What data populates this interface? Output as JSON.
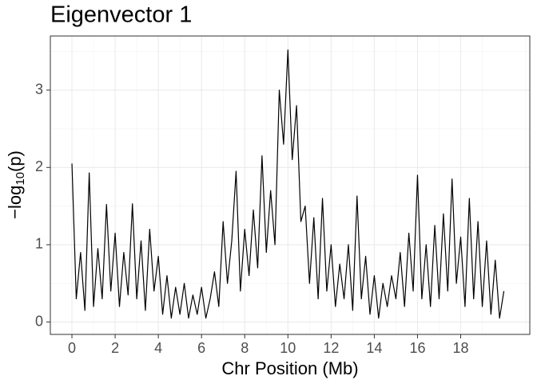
{
  "chart_data": {
    "type": "line",
    "title": "Eigenvector 1",
    "xlabel": "Chr Position (Mb)",
    "ylabel": [
      "−log",
      "10",
      "(p)"
    ],
    "xlim": [
      -1.0,
      21.2
    ],
    "ylim": [
      -0.16,
      3.7
    ],
    "xticks": [
      0,
      2,
      4,
      6,
      8,
      10,
      12,
      14,
      16,
      18
    ],
    "yticks": [
      0,
      1,
      2,
      3
    ],
    "x_minor_grid": [
      1,
      3,
      5,
      7,
      9,
      11,
      13,
      15,
      17,
      19,
      21
    ],
    "y_minor_grid": [
      0.5,
      1.5,
      2.5,
      3.5
    ],
    "grid": true,
    "x": [
      0.0,
      0.2,
      0.4,
      0.6,
      0.8,
      1.0,
      1.2,
      1.4,
      1.6,
      1.8,
      2.0,
      2.2,
      2.4,
      2.6,
      2.8,
      3.0,
      3.2,
      3.4,
      3.6,
      3.8,
      4.0,
      4.2,
      4.4,
      4.6,
      4.8,
      5.0,
      5.2,
      5.4,
      5.6,
      5.8,
      6.0,
      6.2,
      6.4,
      6.6,
      6.8,
      7.0,
      7.2,
      7.4,
      7.6,
      7.8,
      8.0,
      8.2,
      8.4,
      8.6,
      8.8,
      9.0,
      9.2,
      9.4,
      9.6,
      9.8,
      10.0,
      10.2,
      10.4,
      10.6,
      10.8,
      11.0,
      11.2,
      11.4,
      11.6,
      11.8,
      12.0,
      12.2,
      12.4,
      12.6,
      12.8,
      13.0,
      13.2,
      13.4,
      13.6,
      13.8,
      14.0,
      14.2,
      14.4,
      14.6,
      14.8,
      15.0,
      15.2,
      15.4,
      15.6,
      15.8,
      16.0,
      16.2,
      16.4,
      16.6,
      16.8,
      17.0,
      17.2,
      17.4,
      17.6,
      17.8,
      18.0,
      18.2,
      18.4,
      18.6,
      18.8,
      19.0,
      19.2,
      19.4,
      19.6,
      19.8,
      20.0
    ],
    "series": [
      {
        "color": "#000000",
        "values": [
          2.05,
          0.3,
          0.9,
          0.15,
          1.93,
          0.2,
          0.95,
          0.3,
          1.52,
          0.4,
          1.15,
          0.2,
          0.9,
          0.35,
          1.53,
          0.3,
          1.05,
          0.15,
          1.2,
          0.4,
          0.85,
          0.1,
          0.6,
          0.05,
          0.45,
          0.1,
          0.5,
          0.05,
          0.35,
          0.1,
          0.45,
          0.05,
          0.3,
          0.65,
          0.2,
          1.3,
          0.5,
          1.05,
          1.95,
          0.4,
          1.2,
          0.6,
          1.45,
          0.7,
          2.15,
          0.9,
          1.7,
          1.0,
          3.0,
          2.3,
          3.52,
          2.1,
          2.8,
          1.3,
          1.5,
          0.5,
          1.35,
          0.3,
          1.6,
          0.4,
          1.0,
          0.2,
          0.75,
          0.3,
          1.0,
          0.15,
          1.63,
          0.3,
          0.85,
          0.1,
          0.6,
          0.05,
          0.5,
          0.2,
          0.6,
          0.3,
          0.9,
          0.2,
          1.15,
          0.4,
          1.9,
          0.3,
          1.0,
          0.2,
          1.25,
          0.3,
          1.4,
          0.4,
          1.85,
          0.5,
          1.1,
          0.2,
          1.6,
          0.3,
          1.3,
          0.2,
          1.05,
          0.1,
          0.8,
          0.05,
          0.4
        ]
      }
    ]
  }
}
